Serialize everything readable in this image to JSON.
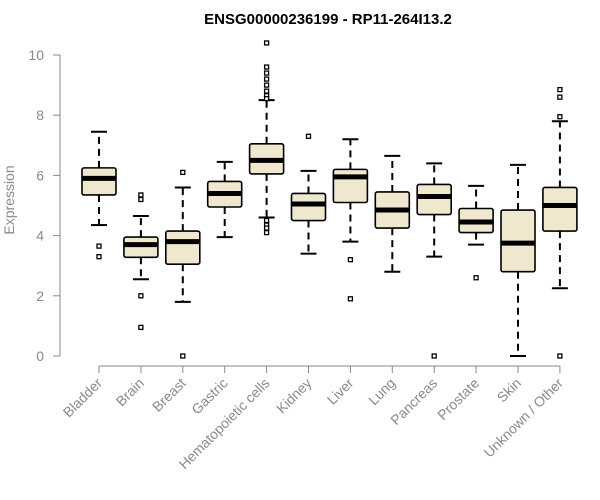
{
  "chart_data": {
    "type": "boxplot",
    "title": "ENSG00000236199 - RP11-264I13.2",
    "ylabel": "Expression",
    "ylim": [
      0,
      10
    ],
    "yticks": [
      "0",
      "2",
      "4",
      "6",
      "8",
      "10"
    ],
    "grid": false,
    "legend": "none",
    "colors": {
      "box_fill": "#efe8cf",
      "box_stroke": "#000000",
      "axis": "#8a8a8a",
      "label": "#8a8a8a"
    },
    "categories": [
      "Bladder",
      "Brain",
      "Breast",
      "Gastric",
      "Hematopoietic cells",
      "Kidney",
      "Liver",
      "Lung",
      "Pancreas",
      "Prostate",
      "Skin",
      "Unknown / Other"
    ],
    "boxes": [
      {
        "q1": 5.35,
        "median": 5.9,
        "q3": 6.25,
        "whisker_low": 4.35,
        "whisker_high": 7.45,
        "outliers": [
          3.65,
          3.3
        ]
      },
      {
        "q1": 3.28,
        "median": 3.7,
        "q3": 3.95,
        "whisker_low": 2.55,
        "whisker_high": 4.65,
        "outliers": [
          5.35,
          5.2,
          2.0,
          0.95
        ]
      },
      {
        "q1": 3.05,
        "median": 3.8,
        "q3": 4.15,
        "whisker_low": 1.8,
        "whisker_high": 5.6,
        "outliers": [
          6.1,
          0.0
        ]
      },
      {
        "q1": 4.95,
        "median": 5.4,
        "q3": 5.8,
        "whisker_low": 3.95,
        "whisker_high": 6.45,
        "outliers": []
      },
      {
        "q1": 6.05,
        "median": 6.5,
        "q3": 7.05,
        "whisker_low": 4.6,
        "whisker_high": 8.5,
        "outliers": [
          10.4,
          9.6,
          9.4,
          9.2,
          9.0,
          8.8,
          8.65,
          8.55,
          4.5,
          4.35,
          4.25,
          4.1
        ]
      },
      {
        "q1": 4.5,
        "median": 5.05,
        "q3": 5.4,
        "whisker_low": 3.4,
        "whisker_high": 6.15,
        "outliers": [
          7.3
        ]
      },
      {
        "q1": 5.1,
        "median": 5.95,
        "q3": 6.2,
        "whisker_low": 3.8,
        "whisker_high": 7.2,
        "outliers": [
          3.2,
          1.9
        ]
      },
      {
        "q1": 4.25,
        "median": 4.85,
        "q3": 5.45,
        "whisker_low": 2.8,
        "whisker_high": 6.65,
        "outliers": []
      },
      {
        "q1": 4.7,
        "median": 5.3,
        "q3": 5.7,
        "whisker_low": 3.3,
        "whisker_high": 6.4,
        "outliers": [
          0.0
        ]
      },
      {
        "q1": 4.1,
        "median": 4.45,
        "q3": 4.9,
        "whisker_low": 3.7,
        "whisker_high": 5.65,
        "outliers": [
          2.6
        ]
      },
      {
        "q1": 2.8,
        "median": 3.75,
        "q3": 4.85,
        "whisker_low": 0.0,
        "whisker_high": 6.35,
        "outliers": []
      },
      {
        "q1": 4.15,
        "median": 5.0,
        "q3": 5.6,
        "whisker_low": 2.25,
        "whisker_high": 7.8,
        "outliers": [
          8.85,
          8.6,
          7.95,
          0.0
        ]
      }
    ]
  }
}
